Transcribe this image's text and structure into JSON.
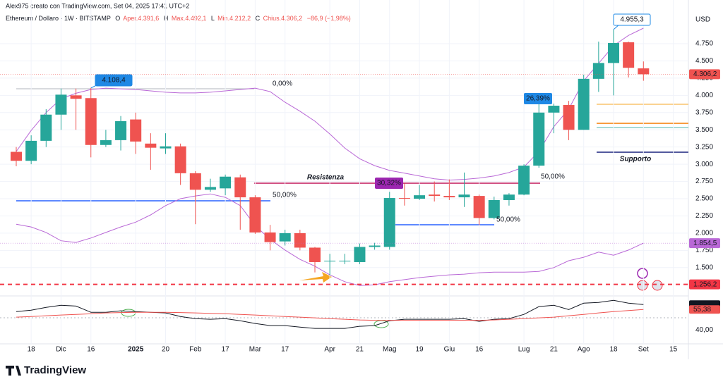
{
  "header": {
    "author": "Alex975 creato con TradingView.com, Set 04, 2025 17:41 UTC+2",
    "symbol": "Ethereum / Dollaro · 1W · BITSTAMP",
    "ohlc": [
      "O",
      "Aper.4.391,6",
      "H",
      "Max.4.492,1",
      "L",
      "Min.4.212,2",
      "C",
      "Chius.4.306,2"
    ],
    "change": "−86,9 (−1,98%)"
  },
  "chart_data": [
    {
      "type": "candlestick",
      "currency": "USD",
      "up_color": "#26a69a",
      "down_color": "#ef5350",
      "categories": [
        null,
        "18",
        null,
        "Dic",
        null,
        "16",
        null,
        null,
        "2025",
        null,
        "20",
        null,
        "Feb",
        null,
        "17",
        null,
        "Mar",
        null,
        "17",
        null,
        null,
        "Apr",
        null,
        "21",
        null,
        "Mag",
        null,
        "19",
        null,
        "Giu",
        null,
        "16",
        null,
        null,
        "Lug",
        null,
        "21",
        null,
        "Ago",
        null,
        "18",
        null,
        "Set",
        null,
        "15"
      ],
      "open": [
        3180,
        3050,
        3340,
        3720,
        4000,
        3960,
        3280,
        3350,
        3650,
        3300,
        3230,
        3260,
        2870,
        2630,
        2650,
        2810,
        2520,
        2010,
        1880,
        2000,
        1790,
        1590,
        1590,
        1580,
        1800,
        1800,
        2510,
        2500,
        2560,
        2540,
        2520,
        2540,
        2220,
        2480,
        2560,
        2980,
        3750,
        3860,
        3500,
        4240,
        4470,
        4770,
        4391.6,
        null,
        null
      ],
      "high": [
        3250,
        3420,
        3800,
        4100,
        4100,
        4110,
        3500,
        3700,
        3750,
        3450,
        3450,
        3300,
        2900,
        2790,
        2850,
        2850,
        2550,
        2120,
        2050,
        2050,
        1800,
        1700,
        1700,
        1850,
        1860,
        2600,
        2720,
        2700,
        2750,
        2780,
        2880,
        2560,
        2530,
        2580,
        3000,
        3880,
        3880,
        3920,
        4300,
        4780,
        4955.3,
        4780,
        4492.1,
        null,
        null
      ],
      "low": [
        2970,
        3000,
        3250,
        3500,
        3500,
        3100,
        3250,
        3200,
        3150,
        2920,
        3150,
        2700,
        2130,
        2600,
        2550,
        2050,
        1990,
        1750,
        1820,
        1750,
        1430,
        1390,
        1550,
        1550,
        1760,
        1760,
        2400,
        2480,
        2460,
        2480,
        2380,
        2120,
        2200,
        2400,
        2550,
        2950,
        3450,
        3350,
        3500,
        4050,
        4000,
        4260,
        4212.2,
        null,
        null
      ],
      "close": [
        3050,
        3340,
        3720,
        4010,
        3950,
        3280,
        3350,
        3625,
        3330,
        3240,
        3260,
        2870,
        2630,
        2670,
        2820,
        2520,
        2010,
        1870,
        2000,
        1790,
        1580,
        1600,
        1600,
        1800,
        1820,
        2510,
        2500,
        2550,
        2540,
        2520,
        2560,
        2220,
        2480,
        2560,
        2980,
        3750,
        3850,
        3500,
        4240,
        4470,
        4760,
        4400,
        4306.2,
        null,
        null
      ],
      "bands": {
        "color": "#b968d6",
        "upper": [
          3185,
          3490,
          3750,
          3950,
          4030,
          4085,
          4105,
          4095,
          4085,
          4065,
          4045,
          4035,
          4035,
          4045,
          4065,
          4085,
          4105,
          4055,
          3900,
          3770,
          3625,
          3440,
          3235,
          3080,
          2980,
          2910,
          2870,
          2830,
          2790,
          2770,
          2780,
          2800,
          2830,
          2880,
          2960,
          3185,
          3545,
          3800,
          4210,
          4465,
          4720,
          4870,
          4975,
          null,
          null
        ],
        "lower": [
          2130,
          2090,
          2010,
          1890,
          1865,
          1930,
          2010,
          2090,
          2160,
          2265,
          2400,
          2500,
          2540,
          2570,
          2520,
          2400,
          2110,
          1910,
          1755,
          1620,
          1520,
          1395,
          1295,
          1240,
          1250,
          1295,
          1325,
          1355,
          1375,
          1395,
          1405,
          1425,
          1435,
          1435,
          1435,
          1445,
          1500,
          1600,
          1650,
          1725,
          1680,
          1755,
          1855,
          null,
          null
        ]
      },
      "ylim": [
        1140,
        5200
      ],
      "yticks": [
        {
          "value": 1500,
          "label": "1.500"
        },
        {
          "value": 1750,
          "label": "1.750"
        },
        {
          "value": 2000,
          "label": "2.000"
        },
        {
          "value": 2250,
          "label": "2.250"
        },
        {
          "value": 2500,
          "label": "2.500"
        },
        {
          "value": 2750,
          "label": "2.750"
        },
        {
          "value": 3000,
          "label": "3.000"
        },
        {
          "value": 3250,
          "label": "3.250"
        },
        {
          "value": 3500,
          "label": "3.500"
        },
        {
          "value": 3750,
          "label": "3.750"
        },
        {
          "value": 4000,
          "label": "4.000"
        },
        {
          "value": 4250,
          "label": "4.250"
        },
        {
          "value": 4500,
          "label": "4.500"
        },
        {
          "value": 4750,
          "label": "4.750"
        }
      ],
      "price_tags": [
        {
          "value": 4306.2,
          "label": "4.306,2",
          "color": "#ef5350"
        },
        {
          "value": 1854.5,
          "label": "1.854,5",
          "color": "#b968d6"
        },
        {
          "value": 1256.2,
          "label": "1.256,2",
          "color": "#f23645"
        }
      ],
      "callouts": [
        {
          "value": 4955.3,
          "label": "4.955,3"
        },
        {
          "value": 4108.4,
          "label": "4.108,4"
        }
      ],
      "annotations": [
        "26,39%",
        "30,32%",
        "0,00%",
        "50,00%",
        "50,00%",
        "50,00%",
        "Resistenza",
        "Supporto"
      ],
      "grid": true
    },
    {
      "type": "line",
      "ylim": [
        31,
        63
      ],
      "yticks": [
        {
          "value": 40,
          "label": "40,00"
        }
      ],
      "series": [
        {
          "color": "#131722",
          "values": [
            53.8,
            54.9,
            57,
            58.6,
            58,
            53.3,
            53.3,
            54.4,
            53.8,
            53.3,
            52.8,
            50.1,
            48.5,
            48,
            48.5,
            46.9,
            44.8,
            43.2,
            43.2,
            42.1,
            41.1,
            41.1,
            41.1,
            42.7,
            43.2,
            46.9,
            48,
            48,
            48,
            48,
            48.5,
            46.4,
            48,
            48.5,
            51.7,
            57.6,
            58.6,
            55.4,
            60.2,
            60.7,
            62.3,
            60.2,
            59.14,
            null,
            null
          ]
        },
        {
          "color": "#ef5350",
          "values": [
            49.6,
            50.1,
            50.7,
            51.2,
            51.7,
            52.2,
            52.8,
            53.1,
            53.3,
            53.3,
            53.3,
            53.1,
            52.8,
            52.5,
            52.2,
            51.7,
            51.2,
            50.7,
            50.1,
            49.6,
            49.1,
            48.5,
            48,
            47.5,
            47.2,
            47.2,
            47.2,
            47.2,
            47.2,
            47.2,
            47.2,
            47.2,
            47.5,
            48,
            48.5,
            49.1,
            49.6,
            50.7,
            51.7,
            52.8,
            53.8,
            54.6,
            55.38,
            null,
            null
          ]
        }
      ],
      "price_tags": [
        {
          "value": 59.14,
          "label": "59,14",
          "color": "#131722"
        },
        {
          "value": 55.38,
          "label": "55,38",
          "color": "#ef5350"
        }
      ]
    }
  ],
  "footer": {
    "logo": "TradingView"
  }
}
